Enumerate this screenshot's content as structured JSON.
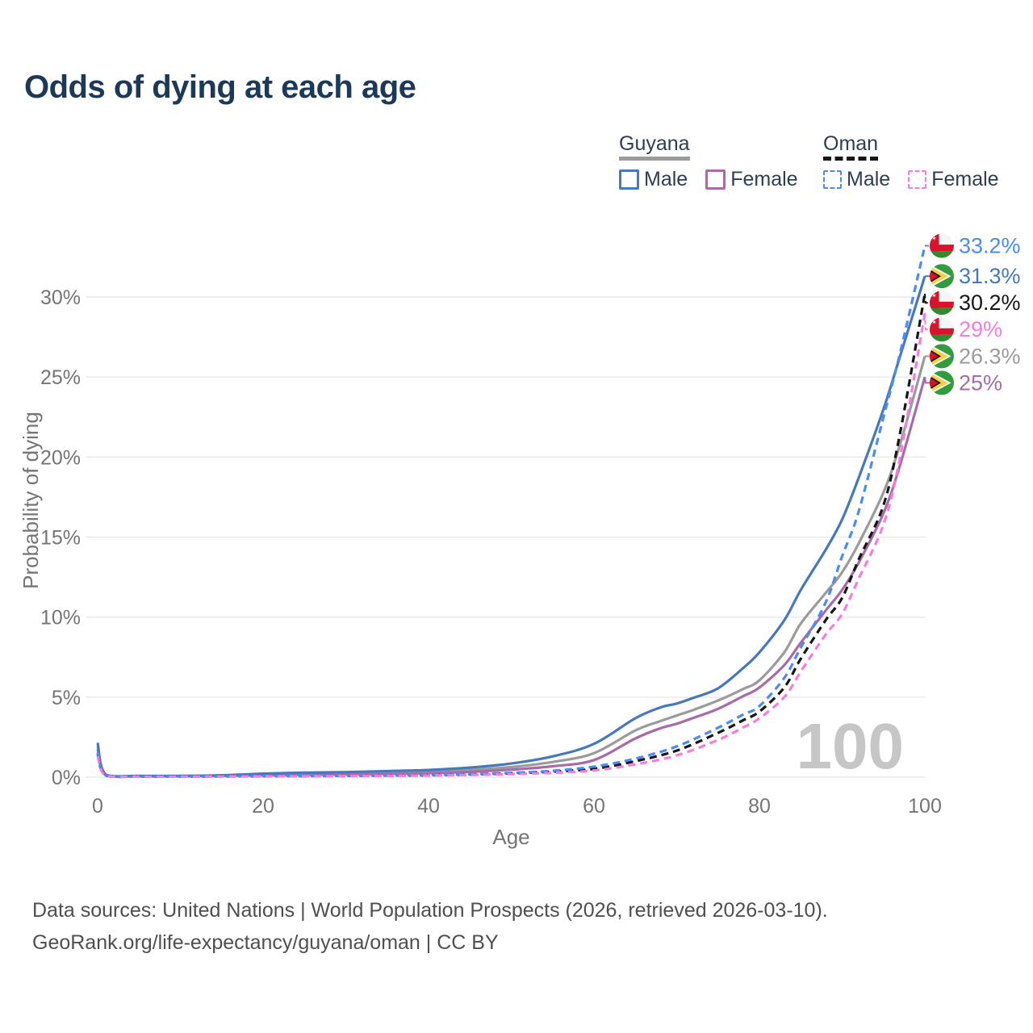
{
  "title": "Odds of dying at each age",
  "legend": {
    "groups": [
      {
        "label": "Guyana",
        "underline_color": "#9b9b9b",
        "underline_style": "solid",
        "items": [
          {
            "label": "Male",
            "color": "#4679bb",
            "dashed": false
          },
          {
            "label": "Female",
            "color": "#a76baa",
            "dashed": false
          }
        ]
      },
      {
        "label": "Oman",
        "underline_color": "#161616",
        "underline_style": "dashed",
        "items": [
          {
            "label": "Male",
            "color": "#4b8bf5",
            "dashed": true
          },
          {
            "label": "Female",
            "color": "#fa7be0",
            "dashed": true
          }
        ]
      }
    ]
  },
  "chart_data": {
    "type": "line",
    "title": "Odds of dying at each age",
    "xlabel": "Age",
    "ylabel": "Probability of dying",
    "xlim": [
      0,
      100
    ],
    "ylim": [
      0,
      33.5
    ],
    "x_ticks": [
      0,
      20,
      40,
      60,
      80,
      100
    ],
    "y_ticks": [
      0,
      5,
      10,
      15,
      20,
      25,
      30
    ],
    "y_tick_suffix": "%",
    "grid": "horizontal",
    "grid_color": "#e9e9e9",
    "tick_color": "#757575",
    "watermark": "100",
    "watermark_color": "#c6c6c6",
    "legend_position": "top-right",
    "series": [
      {
        "name": "Guyana",
        "country": "guyana",
        "sex": "both",
        "color": "#9b9b9b",
        "dashed": false,
        "end_label": "26.3%",
        "points": [
          [
            0,
            1.95
          ],
          [
            1,
            0.13
          ],
          [
            5,
            0.07
          ],
          [
            10,
            0.07
          ],
          [
            15,
            0.1
          ],
          [
            20,
            0.17
          ],
          [
            25,
            0.2
          ],
          [
            30,
            0.24
          ],
          [
            35,
            0.28
          ],
          [
            40,
            0.34
          ],
          [
            45,
            0.45
          ],
          [
            50,
            0.63
          ],
          [
            55,
            0.95
          ],
          [
            60,
            1.5
          ],
          [
            65,
            2.92
          ],
          [
            68,
            3.5
          ],
          [
            70,
            3.85
          ],
          [
            72,
            4.2
          ],
          [
            75,
            4.79
          ],
          [
            78,
            5.5
          ],
          [
            80,
            6.05
          ],
          [
            83,
            7.8
          ],
          [
            85,
            9.6
          ],
          [
            88,
            11.5
          ],
          [
            90,
            12.8
          ],
          [
            92,
            14.6
          ],
          [
            95,
            17.8
          ],
          [
            97,
            20.8
          ],
          [
            100,
            26.3
          ]
        ]
      },
      {
        "name": "Guyana Female",
        "country": "guyana",
        "sex": "female",
        "color": "#a76baa",
        "dashed": false,
        "end_label": "25%",
        "points": [
          [
            0,
            1.75
          ],
          [
            1,
            0.11
          ],
          [
            5,
            0.06
          ],
          [
            10,
            0.06
          ],
          [
            15,
            0.08
          ],
          [
            20,
            0.12
          ],
          [
            25,
            0.14
          ],
          [
            30,
            0.17
          ],
          [
            35,
            0.2
          ],
          [
            40,
            0.25
          ],
          [
            45,
            0.33
          ],
          [
            50,
            0.47
          ],
          [
            55,
            0.68
          ],
          [
            60,
            1.07
          ],
          [
            65,
            2.42
          ],
          [
            68,
            3.05
          ],
          [
            70,
            3.34
          ],
          [
            72,
            3.7
          ],
          [
            75,
            4.27
          ],
          [
            78,
            5.05
          ],
          [
            80,
            5.6
          ],
          [
            83,
            7.0
          ],
          [
            85,
            8.4
          ],
          [
            88,
            10.4
          ],
          [
            90,
            11.7
          ],
          [
            92,
            13.4
          ],
          [
            95,
            16.5
          ],
          [
            97,
            19.5
          ],
          [
            100,
            25.0
          ]
        ]
      },
      {
        "name": "Guyana Male",
        "country": "guyana",
        "sex": "male",
        "color": "#4679bb",
        "dashed": false,
        "end_label": "31.3%",
        "points": [
          [
            0,
            2.15
          ],
          [
            1,
            0.15
          ],
          [
            5,
            0.08
          ],
          [
            10,
            0.08
          ],
          [
            15,
            0.12
          ],
          [
            20,
            0.22
          ],
          [
            25,
            0.28
          ],
          [
            30,
            0.32
          ],
          [
            35,
            0.38
          ],
          [
            40,
            0.45
          ],
          [
            45,
            0.6
          ],
          [
            50,
            0.85
          ],
          [
            55,
            1.3
          ],
          [
            60,
            2.08
          ],
          [
            65,
            3.68
          ],
          [
            68,
            4.35
          ],
          [
            70,
            4.6
          ],
          [
            72,
            4.95
          ],
          [
            75,
            5.55
          ],
          [
            78,
            6.8
          ],
          [
            80,
            7.8
          ],
          [
            83,
            9.8
          ],
          [
            85,
            11.7
          ],
          [
            88,
            14.2
          ],
          [
            90,
            16.1
          ],
          [
            92,
            18.7
          ],
          [
            95,
            23.0
          ],
          [
            97,
            26.3
          ],
          [
            100,
            31.3
          ]
        ]
      },
      {
        "name": "Oman",
        "country": "oman",
        "sex": "both",
        "color": "#161616",
        "dashed": true,
        "end_label": "30.2%",
        "points": [
          [
            0,
            1.45
          ],
          [
            1,
            0.09
          ],
          [
            5,
            0.04
          ],
          [
            10,
            0.04
          ],
          [
            15,
            0.05
          ],
          [
            20,
            0.06
          ],
          [
            25,
            0.07
          ],
          [
            30,
            0.08
          ],
          [
            35,
            0.1
          ],
          [
            40,
            0.12
          ],
          [
            45,
            0.17
          ],
          [
            50,
            0.24
          ],
          [
            55,
            0.35
          ],
          [
            60,
            0.52
          ],
          [
            65,
            1.0
          ],
          [
            70,
            1.66
          ],
          [
            75,
            2.77
          ],
          [
            78,
            3.55
          ],
          [
            80,
            4.1
          ],
          [
            83,
            5.6
          ],
          [
            85,
            7.4
          ],
          [
            88,
            9.8
          ],
          [
            90,
            11.2
          ],
          [
            92,
            13.6
          ],
          [
            95,
            17.0
          ],
          [
            97,
            21.5
          ],
          [
            100,
            30.2
          ]
        ]
      },
      {
        "name": "Oman Male",
        "country": "oman",
        "sex": "male",
        "color": "#4b8bf5",
        "dashed": true,
        "end_label": "33.2%",
        "points": [
          [
            0,
            1.55
          ],
          [
            1,
            0.1
          ],
          [
            5,
            0.04
          ],
          [
            10,
            0.04
          ],
          [
            15,
            0.05
          ],
          [
            20,
            0.07
          ],
          [
            25,
            0.07
          ],
          [
            30,
            0.09
          ],
          [
            35,
            0.11
          ],
          [
            40,
            0.14
          ],
          [
            45,
            0.19
          ],
          [
            50,
            0.27
          ],
          [
            55,
            0.4
          ],
          [
            60,
            0.66
          ],
          [
            65,
            1.16
          ],
          [
            70,
            1.92
          ],
          [
            75,
            3.09
          ],
          [
            78,
            3.9
          ],
          [
            80,
            4.44
          ],
          [
            83,
            6.2
          ],
          [
            85,
            8.1
          ],
          [
            88,
            10.9
          ],
          [
            90,
            13.8
          ],
          [
            92,
            16.6
          ],
          [
            95,
            22.5
          ],
          [
            97,
            26.5
          ],
          [
            100,
            33.2
          ]
        ]
      },
      {
        "name": "Oman Female",
        "country": "oman",
        "sex": "female",
        "color": "#fa7be0",
        "dashed": true,
        "end_label": "29%",
        "points": [
          [
            0,
            1.3
          ],
          [
            1,
            0.08
          ],
          [
            5,
            0.03
          ],
          [
            10,
            0.03
          ],
          [
            15,
            0.04
          ],
          [
            20,
            0.05
          ],
          [
            25,
            0.06
          ],
          [
            30,
            0.07
          ],
          [
            35,
            0.08
          ],
          [
            40,
            0.1
          ],
          [
            45,
            0.14
          ],
          [
            50,
            0.19
          ],
          [
            55,
            0.27
          ],
          [
            60,
            0.42
          ],
          [
            65,
            0.8
          ],
          [
            70,
            1.36
          ],
          [
            75,
            2.33
          ],
          [
            78,
            3.1
          ],
          [
            80,
            3.68
          ],
          [
            83,
            5.0
          ],
          [
            85,
            6.6
          ],
          [
            88,
            8.9
          ],
          [
            90,
            10.2
          ],
          [
            92,
            12.4
          ],
          [
            95,
            15.8
          ],
          [
            97,
            20.0
          ],
          [
            100,
            29.0
          ]
        ]
      }
    ],
    "flag_colors": {
      "oman_red": "#d7142c",
      "oman_green": "#2e8b2e",
      "oman_white": "#f5f5f5",
      "guyana_green": "#349a3f",
      "guyana_yellow": "#f7cf46",
      "guyana_red": "#cf1331",
      "guyana_black": "#1a1a1a",
      "guyana_white": "#f5f5f5"
    }
  },
  "footer": {
    "line1": "Data sources: United Nations | World Population Prospects (2026, retrieved 2026-03-10).",
    "line2": "GeoRank.org/life-expectancy/guyana/oman | CC BY"
  }
}
